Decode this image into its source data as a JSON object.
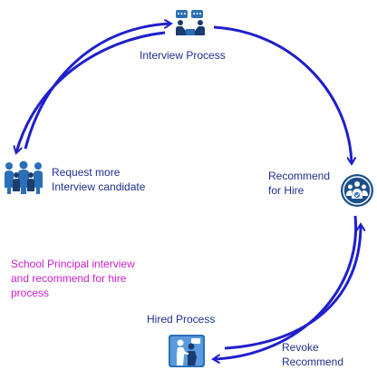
{
  "nodes": {
    "interview": {
      "label": "Interview Process",
      "icon": "interview-meeting-icon"
    },
    "request": {
      "label": "Request more\nInterview candidate",
      "icon": "people-group-icon"
    },
    "recommend": {
      "label": "Recommend\nfor Hire",
      "icon": "recommend-badge-icon"
    },
    "hired": {
      "label": "Hired Process",
      "icon": "handshake-hire-icon"
    },
    "revoke": {
      "label": "Revoke\nRecommend"
    }
  },
  "note": "School Principal interview\nand recommend for hire\nprocess",
  "colors": {
    "arrow": "#1f1fcc",
    "text": "#1f2f8f",
    "note": "#cc1fcc",
    "icon_blue": "#2a6fb8",
    "icon_dark": "#1a3c6e",
    "badge_bg": "#1b4f8a"
  },
  "edges": [
    {
      "from": "interview",
      "to": "recommend"
    },
    {
      "from": "recommend",
      "to": "hired"
    },
    {
      "from": "hired",
      "to": "recommend",
      "label_ref": "revoke"
    },
    {
      "from": "request",
      "to": "interview"
    },
    {
      "from": "interview",
      "to": "request"
    }
  ]
}
